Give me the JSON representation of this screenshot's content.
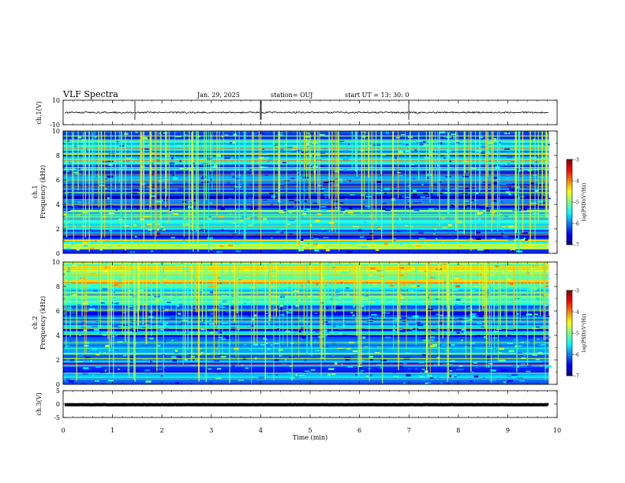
{
  "header": {
    "title": "VLF Spectra",
    "date": "Jan. 29, 2025",
    "station": "station= OUJ",
    "start": "start  UT  =   13: 30: 0"
  },
  "chart_data": [
    {
      "type": "line",
      "panel": "ch.1 waveform",
      "ylabel": "ch.1(V)",
      "ylim": [
        -10,
        10
      ],
      "yticks": [
        "10",
        "-10"
      ],
      "xlim": [
        0,
        10
      ],
      "series": [
        {
          "baseline": 0,
          "noise_band": [
            -0.6,
            0.6
          ],
          "spikes_min": [
            1.45,
            4.0,
            7.0
          ],
          "end_min": 9.83
        }
      ]
    },
    {
      "type": "heatmap",
      "panel": "ch.1 spectrogram",
      "ylabel": "ch.1\nFrequency (kHz)",
      "ylim": [
        0,
        10
      ],
      "yticks": [
        "0",
        "2",
        "4",
        "6",
        "8",
        "10"
      ],
      "xlim": [
        0,
        10
      ],
      "data_end_min": 9.83,
      "colorbar": {
        "label": "log(PSD)(V²/Hz)",
        "range": [
          -7,
          -3
        ],
        "ticks": [
          "-3",
          "-4",
          "-5",
          "-6",
          "-7"
        ]
      },
      "bands_khz": [
        {
          "lo": 0.3,
          "hi": 1.2,
          "level": -5.0
        },
        {
          "lo": 1.2,
          "hi": 2.0,
          "level": -6.3
        },
        {
          "lo": 2.0,
          "hi": 3.5,
          "level": -5.3
        },
        {
          "lo": 3.5,
          "hi": 4.8,
          "level": -6.4
        },
        {
          "lo": 4.8,
          "hi": 6.8,
          "level": -6.3
        },
        {
          "lo": 6.8,
          "hi": 10.0,
          "level": -5.8
        }
      ],
      "tone_lines_khz": [
        0.5,
        1.0,
        1.5,
        2.2,
        2.6,
        2.9,
        3.1,
        3.4,
        4.0,
        4.4,
        5.0,
        5.5,
        6.0,
        6.5,
        7.0,
        7.6,
        8.1,
        8.6,
        9.2,
        9.6
      ]
    },
    {
      "type": "heatmap",
      "panel": "ch.2 spectrogram",
      "ylabel": "ch.2\nFrequency (kHz)",
      "ylim": [
        0,
        10
      ],
      "yticks": [
        "0",
        "2",
        "4",
        "6",
        "8",
        "10"
      ],
      "xlim": [
        0,
        10
      ],
      "data_end_min": 9.83,
      "colorbar": {
        "label": "log(PSD)(V²/Hz)",
        "range": [
          -7,
          -3
        ],
        "ticks": [
          "-3",
          "-4",
          "-5",
          "-6",
          "-7"
        ]
      },
      "bands_khz": [
        {
          "lo": 0.0,
          "hi": 2.5,
          "level": -6.0
        },
        {
          "lo": 2.5,
          "hi": 3.5,
          "level": -5.6
        },
        {
          "lo": 3.5,
          "hi": 6.5,
          "level": -6.1
        },
        {
          "lo": 6.5,
          "hi": 8.0,
          "level": -5.5
        },
        {
          "lo": 8.0,
          "hi": 10.0,
          "level": -4.8
        }
      ],
      "tone_lines_khz": [
        0.4,
        0.9,
        1.6,
        2.1,
        2.5,
        3.0,
        3.4,
        4.1,
        4.6,
        5.2,
        6.0,
        6.8,
        7.4,
        8.3,
        9.0,
        9.6
      ]
    },
    {
      "type": "line",
      "panel": "ch.3 waveform",
      "ylabel": "ch.3(V)",
      "ylim": [
        -5,
        5
      ],
      "yticks": [
        "5",
        "0",
        "-5"
      ],
      "xlim": [
        0,
        10
      ],
      "series": [
        {
          "baseline": -0.2,
          "noise_band": [
            -0.5,
            0.1
          ],
          "end_min": 9.83
        }
      ]
    }
  ],
  "xaxis": {
    "label": "Time (min)",
    "range": [
      0,
      10
    ],
    "ticks": [
      "0",
      "1",
      "2",
      "3",
      "4",
      "5",
      "6",
      "7",
      "8",
      "9",
      "10"
    ]
  }
}
